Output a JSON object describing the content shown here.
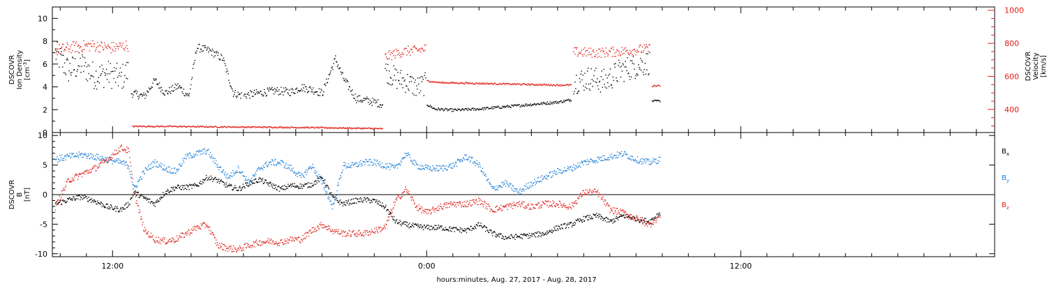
{
  "chart_data": [
    {
      "type": "scatter",
      "panel": "top",
      "ylabel": [
        "DSCOVR",
        "Ion Density",
        "[cm^-3]"
      ],
      "ylim": [
        0,
        11
      ],
      "yticks": [
        0,
        2,
        4,
        6,
        8,
        10
      ],
      "y2label": [
        "DSCOVR",
        "Velocity",
        "[km/s]"
      ],
      "y2lim": [
        260,
        1020
      ],
      "y2ticks": [
        400,
        600,
        800,
        1000
      ],
      "colors": {
        "density": "#000000",
        "velocity": "#e0201a"
      },
      "series": [
        {
          "axis": "left",
          "segments": [
            {
              "x": [
                9.8,
                10.3,
                10.8,
                11.3,
                11.8,
                12.3,
                12.6
              ],
              "y": [
                7.0,
                5.5,
                6.0,
                5.0,
                5.2,
                4.8,
                5.5
              ],
              "jitter": 1.2
            },
            {
              "x": [
                12.7,
                13.2,
                13.6,
                14.0,
                14.5,
                14.9,
                15.2,
                15.7,
                16.2,
                16.6,
                16.9
              ],
              "y": [
                3.5,
                3.2,
                4.6,
                3.5,
                4.1,
                3.2,
                7.5,
                7.2,
                6.5,
                3.5,
                3.3
              ],
              "jitter": 0.35
            },
            {
              "x": [
                17.0,
                17.6,
                18.2,
                18.8,
                19.2,
                19.6,
                20.0,
                20.5,
                20.8,
                21.3,
                21.8,
                22.3
              ],
              "y": [
                3.3,
                3.5,
                3.7,
                3.6,
                4.0,
                3.8,
                3.5,
                6.5,
                4.8,
                3.0,
                2.8,
                2.5
              ],
              "jitter": 0.35
            },
            {
              "x": [
                22.4,
                22.8,
                23.2,
                23.6,
                23.95
              ],
              "y": [
                5.5,
                4.8,
                4.5,
                4.0,
                4.3
              ],
              "jitter": 1.0
            },
            {
              "x": [
                24.0,
                24.3,
                25.0,
                26.0,
                27.0,
                28.0,
                29.0,
                29.5
              ],
              "y": [
                2.5,
                2.1,
                2.0,
                2.1,
                2.3,
                2.5,
                2.7,
                2.9
              ],
              "jitter": 0.12
            },
            {
              "x": [
                29.6,
                30.2,
                30.8,
                31.4,
                31.9,
                32.5
              ],
              "y": [
                4.5,
                4.8,
                4.5,
                5.5,
                5.8,
                6.2
              ],
              "jitter": 1.1
            },
            {
              "x": [
                32.6,
                32.9
              ],
              "y": [
                2.8,
                2.8
              ],
              "jitter": 0.08
            }
          ]
        },
        {
          "axis": "right",
          "segments": [
            {
              "x": [
                9.8,
                10.5,
                11.2,
                11.9,
                12.6
              ],
              "y": [
                760,
                780,
                790,
                775,
                790
              ],
              "jitter": 35
            },
            {
              "x": [
                12.75,
                14.0,
                16.0,
                18.0,
                20.0,
                22.0,
                22.3
              ],
              "y": [
                300,
                300,
                297,
                295,
                292,
                287,
                285
              ],
              "jitter": 4
            },
            {
              "x": [
                22.4,
                22.8,
                23.2,
                23.6,
                23.95
              ],
              "y": [
                720,
                740,
                755,
                760,
                770
              ],
              "jitter": 30
            },
            {
              "x": [
                24.0,
                24.5,
                26.0,
                27.5,
                29.0,
                29.5
              ],
              "y": [
                575,
                565,
                560,
                555,
                550,
                550
              ],
              "jitter": 5
            },
            {
              "x": [
                29.6,
                30.5,
                31.5,
                32.5
              ],
              "y": [
                750,
                745,
                755,
                770
              ],
              "jitter": 30
            },
            {
              "x": [
                32.6,
                32.9
              ],
              "y": [
                545,
                545
              ],
              "jitter": 5
            }
          ]
        }
      ]
    },
    {
      "type": "scatter",
      "panel": "bottom",
      "ylabel": [
        "DSCOVR",
        "B",
        "[nT]"
      ],
      "ylim": [
        -10.5,
        10.5
      ],
      "yticks": [
        -10,
        -5,
        0,
        5,
        10
      ],
      "zero_line": true,
      "xlabel": "hours:minutes, Aug. 27, 2017 - Aug. 28, 2017",
      "xlim": [
        9.7,
        45.7
      ],
      "xticks": [
        {
          "x": 12,
          "label": "12:00"
        },
        {
          "x": 24,
          "label": "0:00"
        },
        {
          "x": 36,
          "label": "12:00"
        }
      ],
      "x_minor_step": 1,
      "legend": "right",
      "series": [
        {
          "name": "Bx",
          "sub": "x",
          "color": "#000000",
          "x": [
            9.8,
            10.3,
            10.8,
            11.3,
            11.8,
            12.3,
            12.6,
            12.8,
            13.2,
            13.6,
            14.0,
            14.4,
            14.8,
            15.2,
            15.6,
            16.0,
            16.4,
            16.8,
            17.2,
            17.6,
            18.0,
            18.4,
            18.8,
            19.2,
            19.6,
            20.0,
            20.4,
            20.8,
            21.2,
            21.6,
            22.0,
            22.4,
            22.8,
            23.2,
            23.6,
            24.0,
            24.5,
            25.0,
            25.5,
            26.0,
            26.5,
            27.0,
            27.5,
            28.0,
            28.5,
            29.0,
            29.5,
            30.0,
            30.5,
            31.0,
            31.5,
            32.0,
            32.5,
            32.9
          ],
          "y": [
            -1.5,
            -0.8,
            -0.3,
            -1.0,
            -2.0,
            -2.5,
            -1.5,
            0.5,
            -0.5,
            -1.5,
            0.5,
            1.3,
            1.3,
            1.6,
            3.0,
            2.5,
            1.5,
            1.0,
            2.0,
            2.6,
            1.8,
            1.0,
            1.6,
            1.5,
            1.8,
            3.0,
            -0.5,
            -1.5,
            -1.0,
            -0.8,
            -1.0,
            -2.0,
            -4.5,
            -5.0,
            -5.3,
            -5.5,
            -5.5,
            -5.8,
            -6.0,
            -5.0,
            -6.5,
            -7.2,
            -7.0,
            -6.8,
            -6.5,
            -5.5,
            -5.0,
            -4.0,
            -3.5,
            -4.5,
            -3.5,
            -4.0,
            -4.5,
            -3.0
          ],
          "jitter": 0.45
        },
        {
          "name": "By",
          "sub": "y",
          "color": "#1e7fd8",
          "x": [
            9.8,
            10.3,
            10.8,
            11.3,
            11.8,
            12.3,
            12.6,
            12.8,
            13.2,
            13.6,
            14.0,
            14.4,
            14.8,
            15.2,
            15.6,
            16.0,
            16.4,
            16.8,
            17.2,
            17.6,
            18.0,
            18.4,
            18.8,
            19.2,
            19.6,
            20.0,
            20.4,
            20.8,
            21.2,
            21.6,
            22.0,
            22.4,
            22.8,
            23.2,
            23.6,
            24.0,
            24.5,
            25.0,
            25.5,
            26.0,
            26.5,
            27.0,
            27.5,
            28.0,
            28.5,
            29.0,
            29.5,
            30.0,
            30.5,
            31.0,
            31.5,
            32.0,
            32.5,
            32.9
          ],
          "y": [
            6.0,
            6.5,
            6.8,
            6.5,
            6.0,
            5.5,
            5.0,
            1.0,
            4.0,
            5.5,
            4.5,
            4.0,
            6.5,
            7.0,
            7.5,
            5.0,
            3.0,
            4.5,
            2.0,
            4.5,
            5.5,
            5.5,
            4.5,
            3.0,
            5.0,
            2.0,
            -2.0,
            5.0,
            5.0,
            5.5,
            5.5,
            5.0,
            4.5,
            7.0,
            5.0,
            4.5,
            4.5,
            5.0,
            6.5,
            5.0,
            1.0,
            2.0,
            0.5,
            2.0,
            3.0,
            4.0,
            4.5,
            5.5,
            6.0,
            6.5,
            7.0,
            6.0,
            5.5,
            6.0
          ],
          "jitter": 0.55
        },
        {
          "name": "Bz",
          "sub": "z",
          "color": "#e0201a",
          "x": [
            9.8,
            10.3,
            10.8,
            11.3,
            11.8,
            12.3,
            12.6,
            12.8,
            13.2,
            13.6,
            14.0,
            14.4,
            14.8,
            15.2,
            15.6,
            16.0,
            16.4,
            16.8,
            17.2,
            17.6,
            18.0,
            18.4,
            18.8,
            19.2,
            19.6,
            20.0,
            20.4,
            20.8,
            21.2,
            21.6,
            22.0,
            22.4,
            22.8,
            23.2,
            23.6,
            24.0,
            24.5,
            25.0,
            25.5,
            26.0,
            26.5,
            27.0,
            27.5,
            28.0,
            28.5,
            29.0,
            29.5,
            30.0,
            30.5,
            31.0,
            31.5,
            32.0,
            32.5,
            32.9
          ],
          "y": [
            -2.0,
            2.5,
            3.5,
            4.5,
            6.0,
            8.0,
            7.5,
            0.5,
            -6.0,
            -7.5,
            -7.8,
            -7.5,
            -6.5,
            -5.5,
            -5.0,
            -8.5,
            -9.0,
            -9.2,
            -8.5,
            -8.0,
            -7.8,
            -8.0,
            -7.5,
            -7.5,
            -6.0,
            -5.0,
            -6.0,
            -6.5,
            -6.5,
            -6.5,
            -6.0,
            -5.5,
            -1.0,
            1.0,
            -2.0,
            -3.0,
            -2.0,
            -1.5,
            -1.5,
            -1.0,
            -2.5,
            -2.0,
            -1.5,
            -2.0,
            -1.5,
            -1.5,
            -2.0,
            0.5,
            0.5,
            -2.5,
            -3.0,
            -4.0,
            -5.0,
            -3.5
          ],
          "jitter": 0.55
        }
      ]
    }
  ]
}
